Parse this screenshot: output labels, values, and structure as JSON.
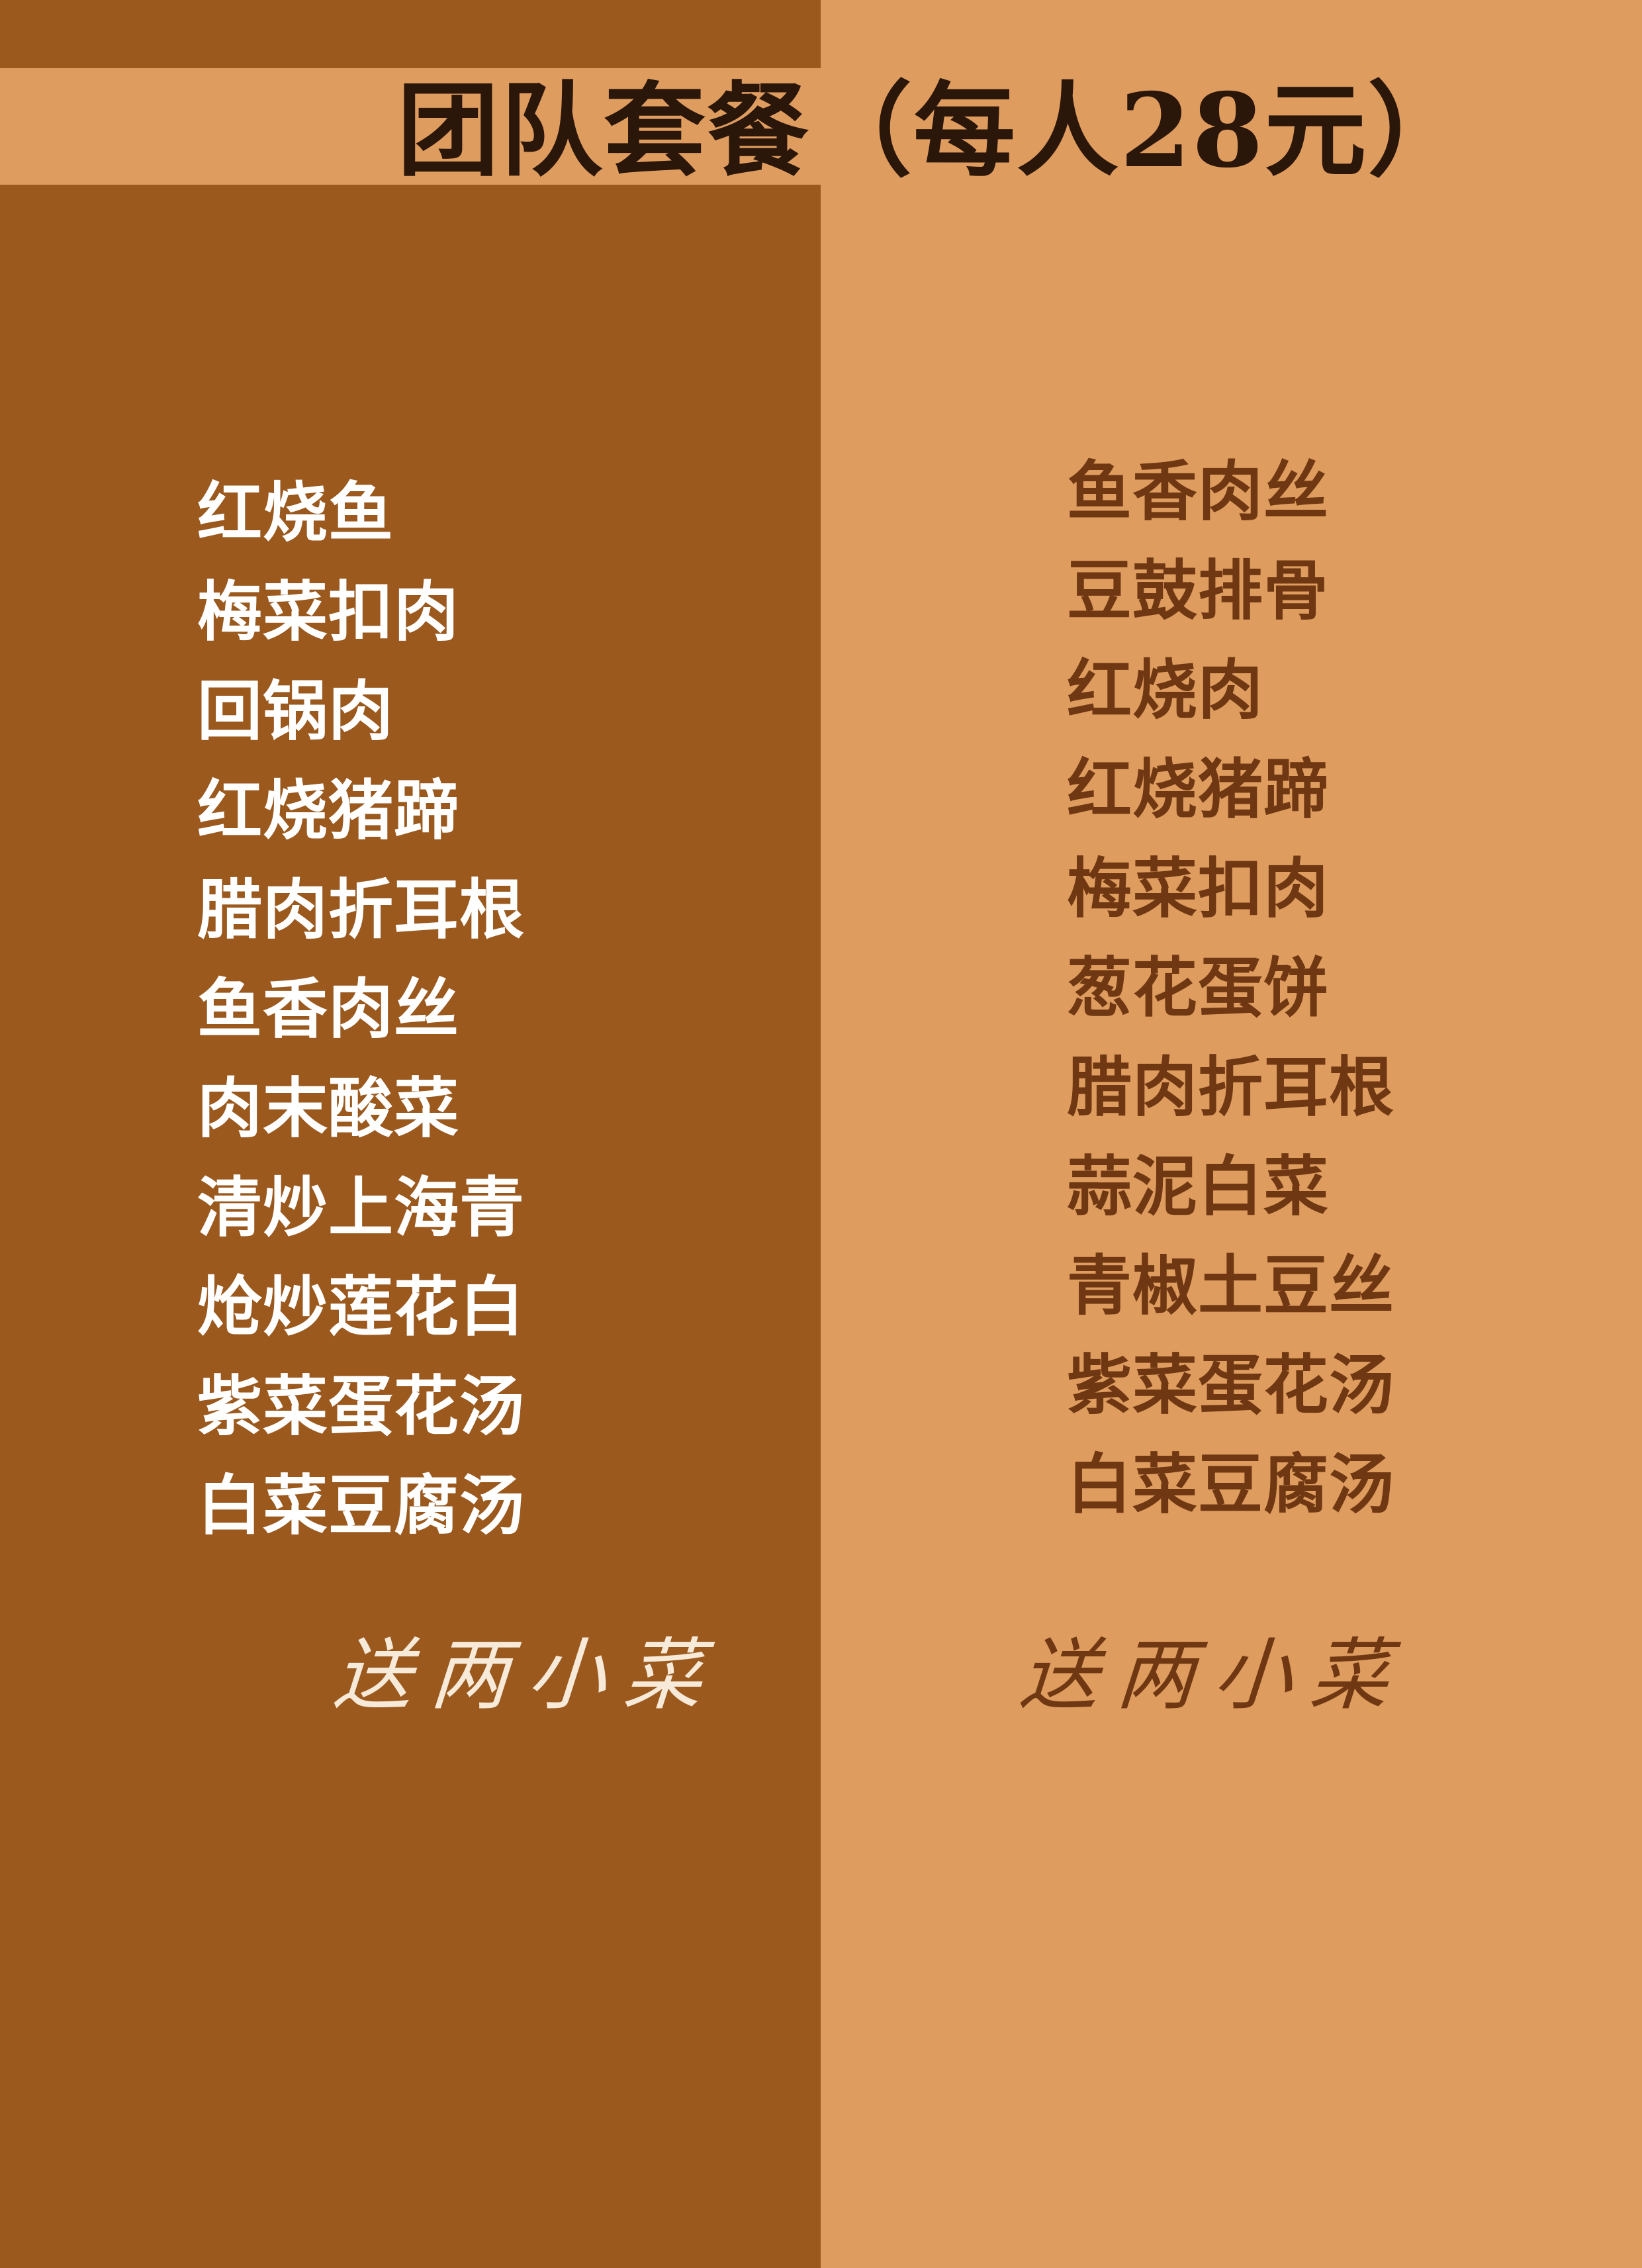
{
  "title": "团队套餐（每人28元）",
  "left_menu": {
    "items": [
      "红烧鱼",
      "梅菜扣肉",
      "回锅肉",
      "红烧猪蹄",
      "腊肉折耳根",
      "鱼香肉丝",
      "肉末酸菜",
      "清炒上海青",
      "炝炒莲花白",
      "紫菜蛋花汤",
      "白菜豆腐汤"
    ],
    "footer": "送两小菜"
  },
  "right_menu": {
    "items": [
      "鱼香肉丝",
      "豆鼓排骨",
      "红烧肉",
      "红烧猪蹄",
      "梅菜扣肉",
      "葱花蛋饼",
      "腊肉折耳根",
      "蒜泥白菜",
      "青椒土豆丝",
      "紫菜蛋花汤",
      "白菜豆腐汤"
    ],
    "footer": "送两小菜"
  },
  "colors": {
    "left_panel": "#9b591e",
    "right_panel": "#df9c5f",
    "title_text": "#2b160a",
    "left_text": "#ffffff",
    "right_text": "#6f3812"
  }
}
